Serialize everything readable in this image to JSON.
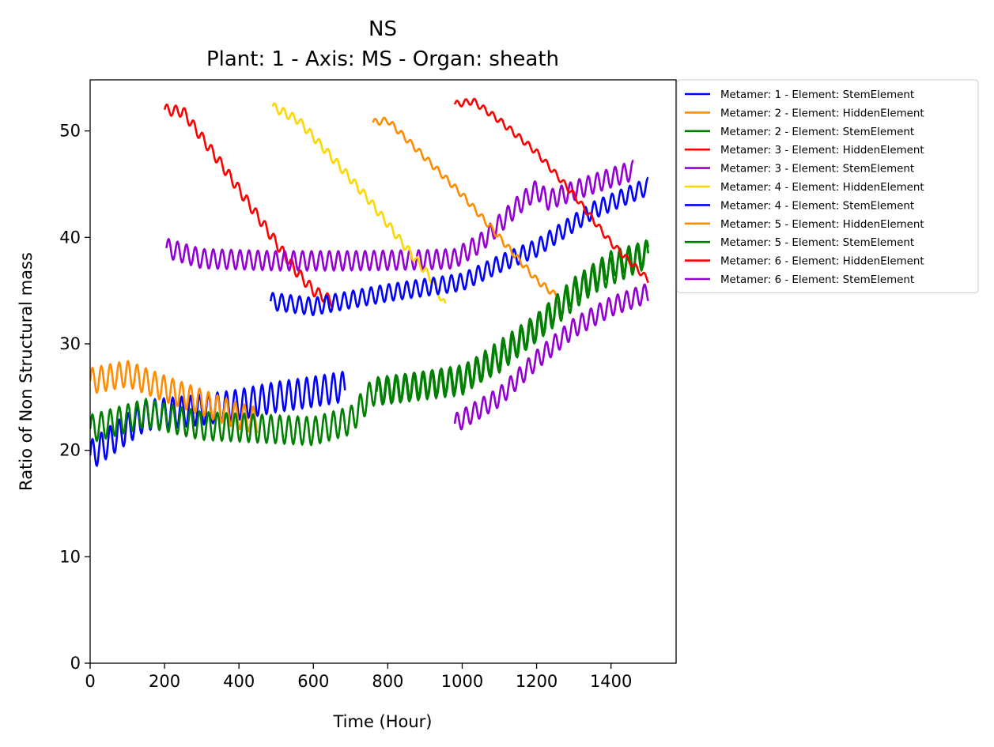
{
  "chart_data": {
    "type": "line",
    "title": "NS",
    "subtitle": "Plant: 1 - Axis: MS - Organ: sheath",
    "xlabel": "Time (Hour)",
    "ylabel": "Ratio of Non Structural mass",
    "xlim": [
      0,
      1575
    ],
    "ylim": [
      0,
      54.8
    ],
    "xticks": [
      0,
      200,
      400,
      600,
      800,
      1000,
      1200,
      1400
    ],
    "yticks": [
      0,
      10,
      20,
      30,
      40,
      50
    ],
    "grid": false,
    "legend_position": "outside-top-right",
    "series": [
      {
        "name": "Metamer: 1 - Element: StemElement",
        "color": "#0000ff",
        "trend": [
          [
            0,
            19.5
          ],
          [
            150,
            23.3
          ],
          [
            300,
            23.8
          ],
          [
            400,
            24.3
          ],
          [
            500,
            25.0
          ],
          [
            600,
            25.5
          ],
          [
            685,
            26.0
          ]
        ],
        "amp": 1.4
      },
      {
        "name": "Metamer: 2 - Element: HiddenElement",
        "color": "#ff8c00",
        "trend": [
          [
            0,
            26.5
          ],
          [
            100,
            27.2
          ],
          [
            200,
            25.8
          ],
          [
            300,
            24.5
          ],
          [
            400,
            23.2
          ],
          [
            450,
            22.8
          ]
        ],
        "amp": 1.2
      },
      {
        "name": "Metamer: 2 - Element: StemElement",
        "color": "#008000",
        "trend": [
          [
            0,
            22.0
          ],
          [
            150,
            23.5
          ],
          [
            300,
            22.3
          ],
          [
            600,
            21.8
          ],
          [
            700,
            22.8
          ],
          [
            760,
            25.5
          ],
          [
            1000,
            26.5
          ],
          [
            1200,
            31.5
          ],
          [
            1350,
            36.0
          ],
          [
            1500,
            38.5
          ]
        ],
        "amp": 1.3
      },
      {
        "name": "Metamer: 3 - Element: HiddenElement",
        "color": "#ff0000",
        "trend": [
          [
            200,
            52.0
          ],
          [
            250,
            51.8
          ],
          [
            350,
            47.0
          ],
          [
            450,
            42.0
          ],
          [
            550,
            37.0
          ],
          [
            600,
            35.0
          ],
          [
            650,
            34.0
          ]
        ],
        "amp": 0.5
      },
      {
        "name": "Metamer: 3 - Element: StemElement",
        "color": "#9400d3",
        "trend": [
          [
            205,
            39.0
          ],
          [
            300,
            38.0
          ],
          [
            500,
            37.8
          ],
          [
            700,
            37.8
          ],
          [
            900,
            37.9
          ],
          [
            980,
            38.0
          ],
          [
            1050,
            39.5
          ],
          [
            1150,
            43.0
          ],
          [
            1200,
            44.5
          ],
          [
            1230,
            43.5
          ],
          [
            1350,
            45.0
          ],
          [
            1460,
            46.3
          ]
        ],
        "amp": 0.9
      },
      {
        "name": "Metamer: 4 - Element: HiddenElement",
        "color": "#ffd700",
        "trend": [
          [
            490,
            52.3
          ],
          [
            560,
            51.0
          ],
          [
            650,
            47.5
          ],
          [
            750,
            43.5
          ],
          [
            850,
            39.0
          ],
          [
            920,
            36.0
          ],
          [
            955,
            33.5
          ]
        ],
        "amp": 0.4
      },
      {
        "name": "Metamer: 4 - Element: StemElement",
        "color": "#0000ff",
        "trend": [
          [
            485,
            34.0
          ],
          [
            600,
            33.5
          ],
          [
            800,
            34.8
          ],
          [
            1000,
            35.8
          ],
          [
            1100,
            37.5
          ],
          [
            1200,
            39.0
          ],
          [
            1350,
            42.5
          ],
          [
            1500,
            44.8
          ]
        ],
        "amp": 0.8
      },
      {
        "name": "Metamer: 5 - Element: HiddenElement",
        "color": "#ff8c00",
        "trend": [
          [
            760,
            50.8
          ],
          [
            800,
            51.0
          ],
          [
            900,
            47.5
          ],
          [
            1000,
            44.0
          ],
          [
            1100,
            40.0
          ],
          [
            1200,
            36.0
          ],
          [
            1260,
            34.3
          ]
        ],
        "amp": 0.3
      },
      {
        "name": "Metamer: 5 - Element: StemElement",
        "color": "#008000",
        "trend": [
          [
            770,
            25.5
          ],
          [
            900,
            26.2
          ],
          [
            1000,
            26.8
          ],
          [
            1100,
            28.5
          ],
          [
            1200,
            31.5
          ],
          [
            1300,
            35.0
          ],
          [
            1400,
            37.5
          ],
          [
            1500,
            38.5
          ]
        ],
        "amp": 1.2
      },
      {
        "name": "Metamer: 6 - Element: HiddenElement",
        "color": "#ff0000",
        "trend": [
          [
            980,
            52.5
          ],
          [
            1030,
            52.8
          ],
          [
            1100,
            51.0
          ],
          [
            1200,
            48.0
          ],
          [
            1300,
            44.0
          ],
          [
            1400,
            39.5
          ],
          [
            1500,
            36.0
          ]
        ],
        "amp": 0.3
      },
      {
        "name": "Metamer: 6 - Element: StemElement",
        "color": "#9400d3",
        "trend": [
          [
            980,
            22.5
          ],
          [
            1100,
            25.0
          ],
          [
            1200,
            28.5
          ],
          [
            1300,
            31.5
          ],
          [
            1400,
            33.5
          ],
          [
            1500,
            34.8
          ]
        ],
        "amp": 0.9
      }
    ]
  }
}
